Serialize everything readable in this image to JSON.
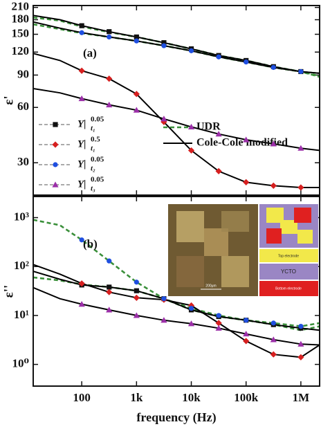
{
  "chart_data": [
    {
      "type": "line",
      "panel_label": "(a)",
      "y_label": "ε'",
      "log_x": true,
      "log_y": true,
      "xlim": [
        13,
        2200000
      ],
      "ylim": [
        20,
        215
      ],
      "yticks": [
        30,
        60,
        90,
        120,
        150,
        180,
        210
      ],
      "x": [
        100,
        316,
        1000,
        3162,
        10000,
        31623,
        100000,
        316228,
        1000000
      ],
      "fit_x": [
        13,
        40,
        100,
        316,
        1000,
        3162,
        10000,
        31623,
        100000,
        316228,
        1000000,
        2200000
      ],
      "series": [
        {
          "name": "Y|",
          "subscript": "t₁",
          "superscript": "0.05",
          "color": "#111111",
          "marker": "square",
          "values": [
            167,
            155,
            145,
            135,
            125,
            115,
            108,
            100,
            94
          ]
        },
        {
          "name": "Y|",
          "subscript": "t₁",
          "superscript": "0.5",
          "color": "#d62020",
          "marker": "diamond",
          "values": [
            95,
            86,
            71,
            50,
            35,
            27,
            23.5,
            22.5,
            22
          ]
        },
        {
          "name": "Y|",
          "subscript": "t₂",
          "superscript": "0.05",
          "color": "#1f4fe0",
          "marker": "circle",
          "values": [
            153,
            145,
            138,
            130,
            122,
            113,
            106,
            99,
            94
          ]
        },
        {
          "name": "Y|",
          "subscript": "t₃",
          "superscript": "0.05",
          "color": "#9b2fa8",
          "marker": "triangle",
          "values": [
            67,
            62,
            58,
            52,
            47,
            43,
            40,
            38,
            36
          ]
        }
      ],
      "fits": [
        {
          "name": "UDR",
          "color": "#3a8f3a",
          "dashed": true,
          "lines": [
            [
              185,
              178,
              165,
              154,
              145,
              135,
              125,
              115,
              108,
              100,
              94,
              88
            ],
            [
              170,
              160,
              152,
              145,
              138,
              130,
              122,
              113,
              106,
              99,
              94,
              89
            ]
          ]
        },
        {
          "name": "Cole-Cole modified",
          "color": "#000000",
          "dashed": false,
          "lines": [
            [
              190,
              180,
              167,
              155,
              145,
              135,
              125,
              115,
              108,
              100,
              94,
              92
            ],
            [
              175,
              162,
              153,
              145,
              138,
              130,
              122,
              113,
              106,
              99,
              94,
              92
            ],
            [
              118,
              108,
              95,
              86,
              71,
              50,
              35,
              27,
              23.5,
              22.5,
              22,
              22
            ],
            [
              76,
              72,
              67,
              62,
              58,
              52,
              47,
              43,
              40,
              38,
              36,
              35
            ]
          ]
        }
      ]
    },
    {
      "type": "line",
      "panel_label": "(b)",
      "y_label": "ε''",
      "x_label": "frequency (Hz)",
      "log_x": true,
      "log_y": true,
      "xlim": [
        13,
        2200000
      ],
      "ylim": [
        0.36,
        2700
      ],
      "xticks": [
        100,
        {
          "value": 1000,
          "label": "1k"
        },
        {
          "value": 10000,
          "label": "10k"
        },
        {
          "value": 100000,
          "label": "100k"
        },
        {
          "value": 1000000,
          "label": "1M"
        }
      ],
      "yticks": [
        {
          "value": 1,
          "label": "10⁰"
        },
        {
          "value": 10,
          "label": "10¹"
        },
        {
          "value": 100,
          "label": "10²"
        },
        {
          "value": 1000,
          "label": "10³"
        }
      ],
      "x": [
        100,
        316,
        1000,
        3162,
        10000,
        31623,
        100000,
        316228,
        1000000
      ],
      "fit_x": [
        13,
        40,
        100,
        316,
        1000,
        3162,
        10000,
        31623,
        100000,
        316228,
        1000000,
        2200000
      ],
      "series": [
        {
          "color": "#111111",
          "marker": "square",
          "values": [
            42,
            38,
            32,
            22,
            13,
            9.5,
            8,
            6.5,
            5.5
          ]
        },
        {
          "color": "#d62020",
          "marker": "diamond",
          "values": [
            45,
            30,
            23,
            21,
            16,
            7,
            3,
            1.6,
            1.4
          ]
        },
        {
          "color": "#1f4fe0",
          "marker": "circle",
          "values": [
            350,
            130,
            48,
            22,
            14,
            10,
            8,
            7,
            6
          ]
        },
        {
          "color": "#9b2fa8",
          "marker": "triangle",
          "values": [
            17,
            13,
            10,
            8,
            6.8,
            5.5,
            4.2,
            3.2,
            2.6
          ]
        }
      ],
      "fits": [
        {
          "color": "#3a8f3a",
          "dashed": true,
          "lines": [
            [
              900,
              700,
              350,
              130,
              48,
              22,
              14,
              10,
              8,
              7,
              6,
              7
            ],
            [
              60,
              52,
              43,
              38,
              32,
              22,
              13,
              9.5,
              8,
              6.5,
              5,
              6
            ]
          ]
        },
        {
          "color": "#000000",
          "dashed": false,
          "lines": [
            [
              80,
              55,
              42,
              38,
              32,
              22,
              13,
              9.5,
              8,
              6.5,
              5.5,
              5
            ],
            [
              110,
              70,
              45,
              30,
              23,
              21,
              16,
              7,
              3,
              1.6,
              1.4,
              2.5
            ],
            [
              37,
              22,
              17,
              13,
              10,
              8,
              6.8,
              5.5,
              4.2,
              3.2,
              2.6,
              2.5
            ]
          ]
        }
      ]
    }
  ],
  "inset": {
    "scale_bar": "200μm",
    "layers": [
      "Top electrode",
      "YCTO",
      "Bottom electrode"
    ]
  }
}
